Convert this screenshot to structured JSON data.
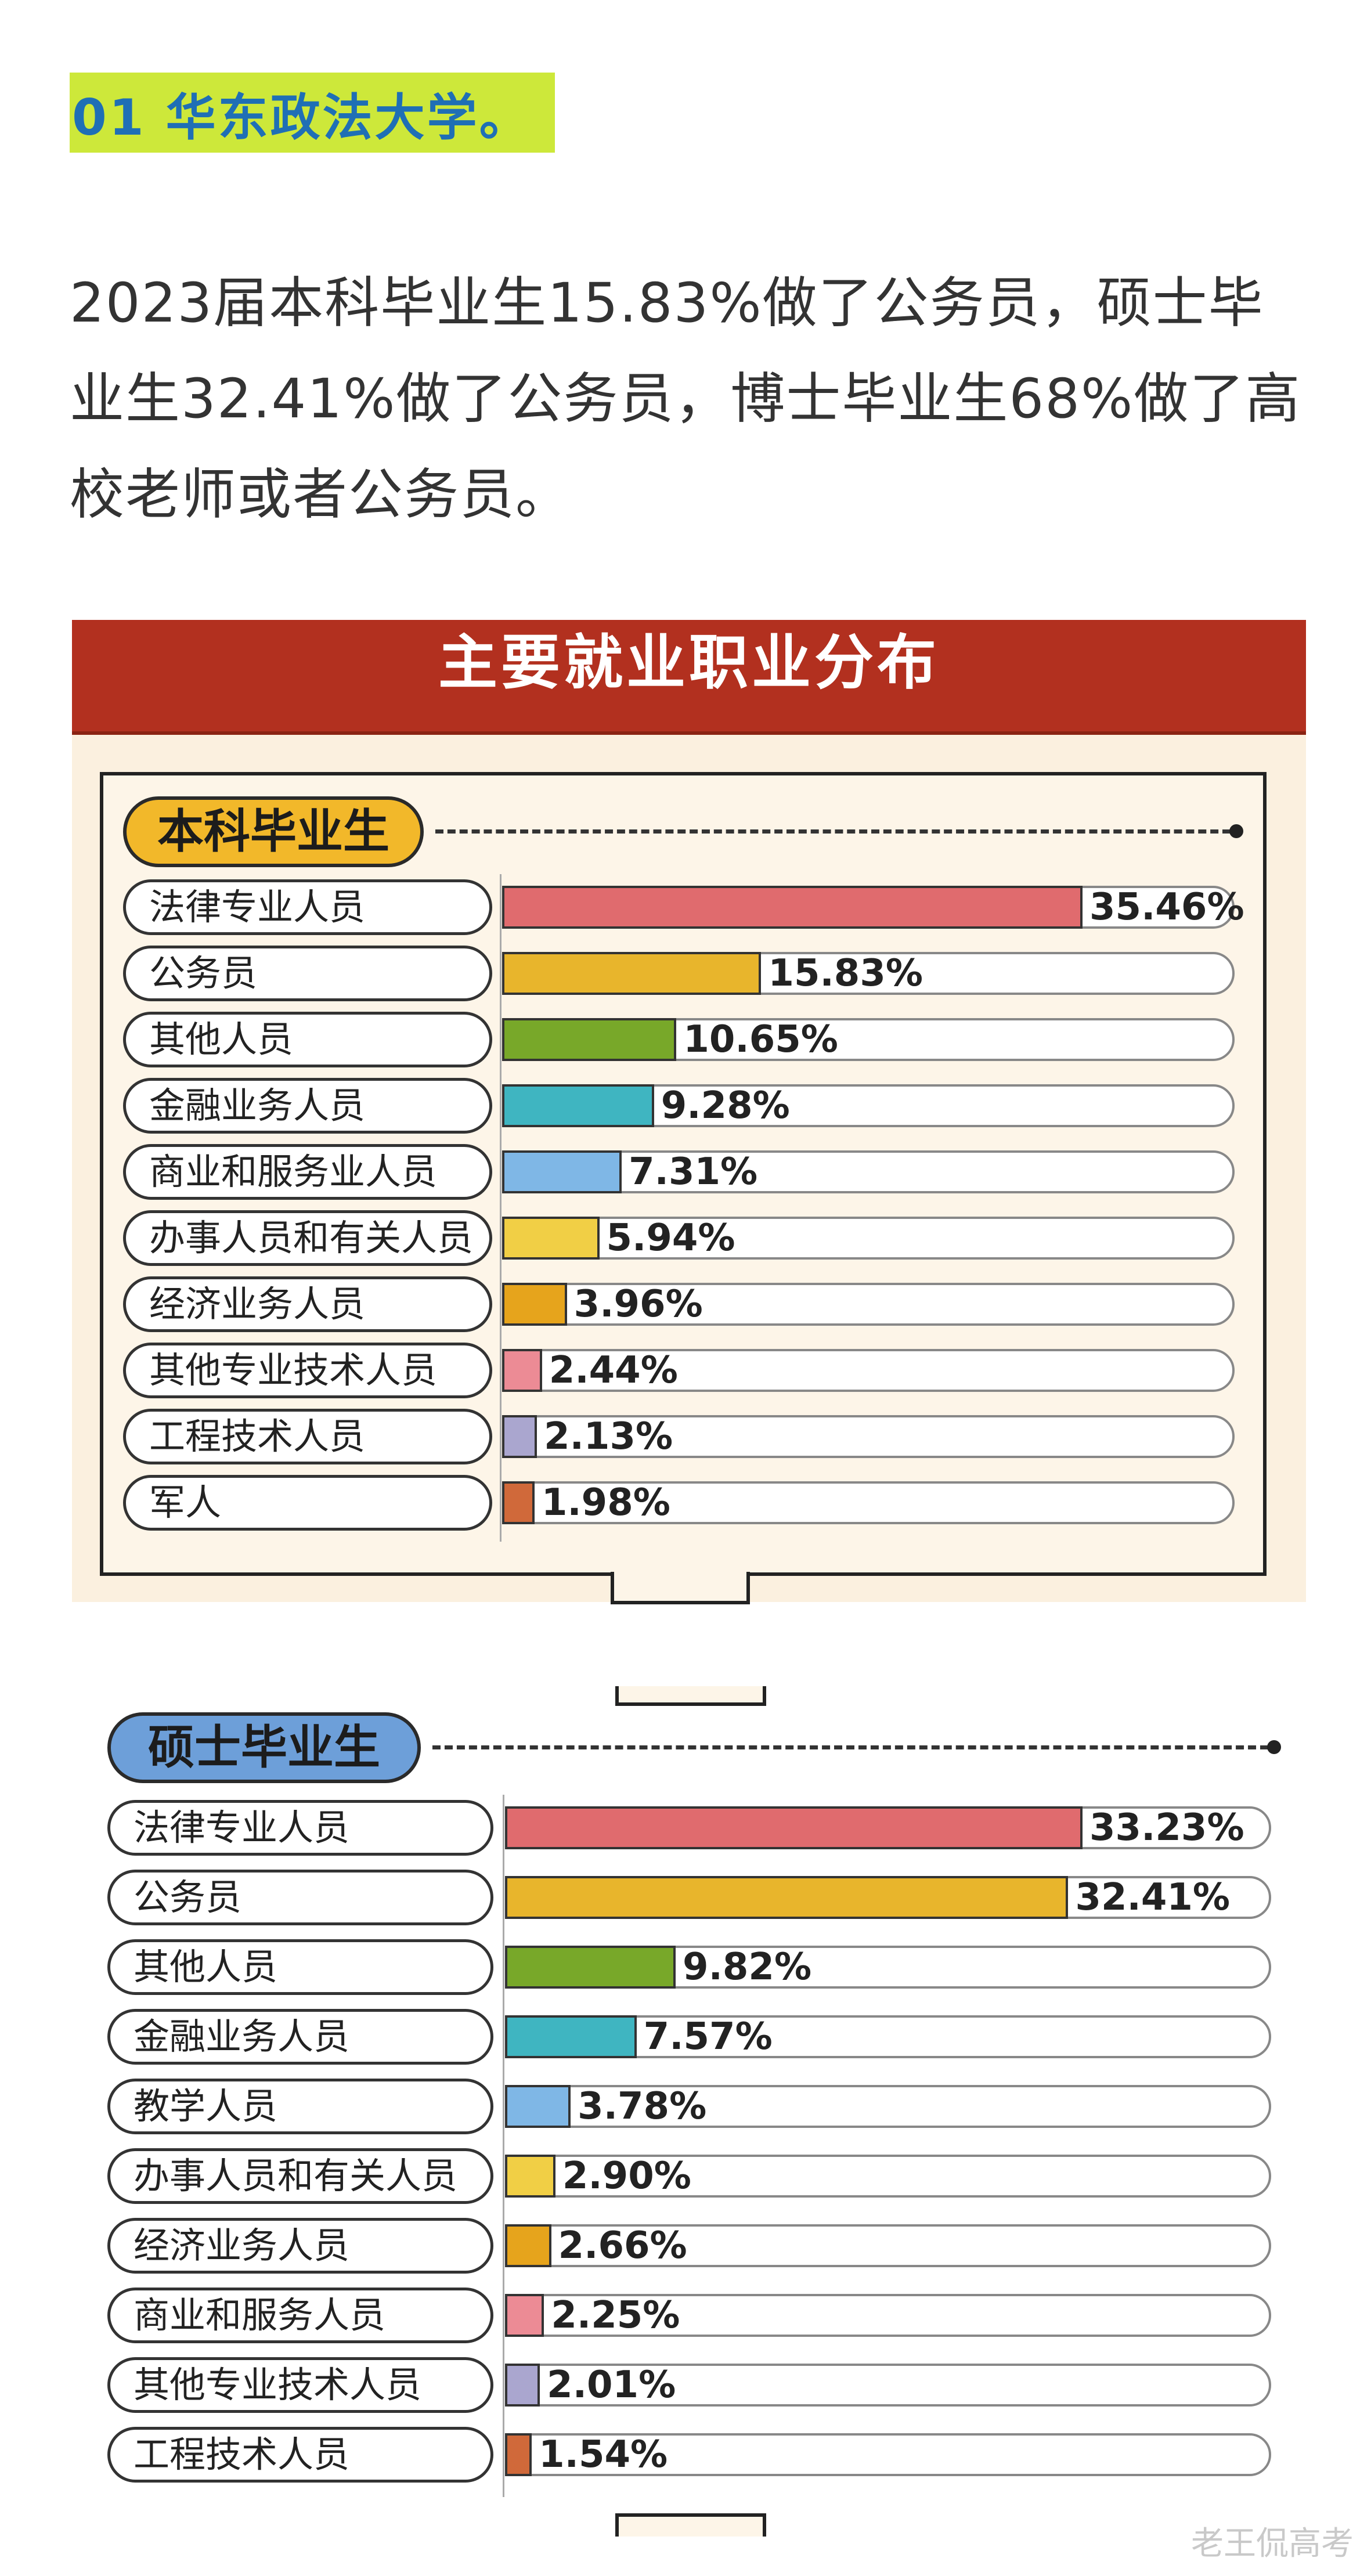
{
  "heading": "01 华东政法大学。",
  "paragraph": "2023届本科毕业生15.83%做了公务员，硕士毕业生32.41%做了公务员，博士毕业生68%做了高校老师或者公务员。",
  "panel_title": "主要就业职业分布",
  "watermark": "老王侃高考",
  "colors": {
    "red": "#e06b6e",
    "orange": "#e8b52c",
    "green": "#78a829",
    "teal": "#3fb5c1",
    "blue": "#7fb7e6",
    "yellow": "#f1cf45",
    "gold": "#e6a41c",
    "pink": "#ec8b95",
    "lavender": "#aaa6cf",
    "brown": "#d0693a"
  },
  "chart_data": [
    {
      "type": "bar",
      "title": "本科毕业生",
      "categories": [
        "法律专业人员",
        "公务员",
        "其他人员",
        "金融业务人员",
        "商业和服务业人员",
        "办事人员和有关人员",
        "经济业务人员",
        "其他专业技术人员",
        "工程技术人员",
        "军人"
      ],
      "values": [
        35.46,
        15.83,
        10.65,
        9.28,
        7.31,
        5.94,
        3.96,
        2.44,
        2.13,
        1.98
      ],
      "labels": [
        "35.46%",
        "15.83%",
        "10.65%",
        "9.28%",
        "7.31%",
        "5.94%",
        "3.96%",
        "2.44%",
        "2.13%",
        "1.98%"
      ],
      "colors": [
        "red",
        "orange",
        "green",
        "teal",
        "blue",
        "yellow",
        "gold",
        "pink",
        "lavender",
        "brown"
      ],
      "xlim": [
        0,
        40
      ]
    },
    {
      "type": "bar",
      "title": "硕士毕业生",
      "categories": [
        "法律专业人员",
        "公务员",
        "其他人员",
        "金融业务人员",
        "教学人员",
        "办事人员和有关人员",
        "经济业务人员",
        "商业和服务人员",
        "其他专业技术人员",
        "工程技术人员"
      ],
      "values": [
        33.23,
        32.41,
        9.82,
        7.57,
        3.78,
        2.9,
        2.66,
        2.25,
        2.01,
        1.54
      ],
      "labels": [
        "33.23%",
        "32.41%",
        "9.82%",
        "7.57%",
        "3.78%",
        "2.90%",
        "2.66%",
        "2.25%",
        "2.01%",
        "1.54%"
      ],
      "colors": [
        "red",
        "orange",
        "green",
        "teal",
        "blue",
        "yellow",
        "gold",
        "pink",
        "lavender",
        "brown"
      ],
      "xlim": [
        0,
        37.6
      ]
    }
  ]
}
